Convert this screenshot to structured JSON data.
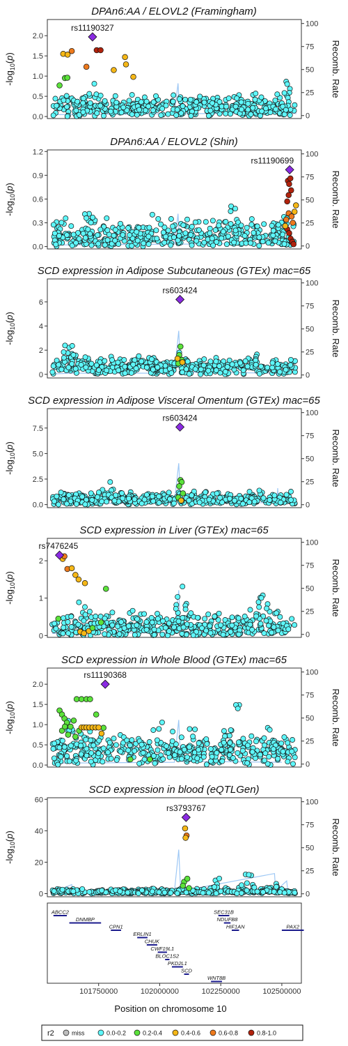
{
  "chart_data": {
    "type": "scatter",
    "colors": {
      "miss": "#BEBEBE",
      "0.0-0.2": "#5EF7FA",
      "0.2-0.4": "#5BE23B",
      "0.4-0.6": "#F5B717",
      "0.6-0.8": "#EE7A1D",
      "0.8-1.0": "#B1220C",
      "lead": "#8A2BE2",
      "recomb_line": "#9EC8F5"
    },
    "x_axis": {
      "label": "Position on chromosome 10",
      "ticks": [
        101750000,
        102000000,
        102250000,
        102500000
      ],
      "tick_labels": [
        "101750000",
        "102000000",
        "102250000",
        "102500000"
      ],
      "range": [
        101540000,
        102580000
      ]
    },
    "recomb_axis": {
      "label": "Recomb. Rate",
      "ticks": [
        0,
        25,
        50,
        75,
        100
      ],
      "range": [
        0,
        100
      ]
    },
    "panels": [
      {
        "title": "DPAn6:AA / ELOVL2 (Framingham)",
        "ylim": [
          -0.05,
          2.4
        ],
        "yticks": [
          0.0,
          0.5,
          1.0,
          1.5,
          2.0
        ],
        "ytick_labels": [
          "0.0",
          "0.5",
          "1.0",
          "1.5",
          "2.0"
        ],
        "lead": {
          "snp": "rs11190327",
          "x": 101725000,
          "y": 1.97
        },
        "colored": [
          {
            "x": 101605000,
            "y": 1.55,
            "c": "0.4-0.6"
          },
          {
            "x": 101623000,
            "y": 1.53,
            "c": "0.4-0.6"
          },
          {
            "x": 101640000,
            "y": 1.62,
            "c": "0.6-0.8"
          },
          {
            "x": 101700000,
            "y": 1.23,
            "c": "0.6-0.8"
          },
          {
            "x": 101742000,
            "y": 1.64,
            "c": "0.8-1.0"
          },
          {
            "x": 101758000,
            "y": 1.64,
            "c": "0.8-1.0"
          },
          {
            "x": 101812000,
            "y": 1.15,
            "c": "0.4-0.6"
          },
          {
            "x": 101858000,
            "y": 1.47,
            "c": "0.4-0.6"
          },
          {
            "x": 101862000,
            "y": 1.29,
            "c": "0.4-0.6"
          },
          {
            "x": 101892000,
            "y": 0.98,
            "c": "0.4-0.6"
          },
          {
            "x": 101590000,
            "y": 0.77,
            "c": "0.2-0.4"
          },
          {
            "x": 101612000,
            "y": 0.95,
            "c": "0.2-0.4"
          },
          {
            "x": 101622000,
            "y": 0.96,
            "c": "0.2-0.4"
          }
        ]
      },
      {
        "title": "DPAn6:AA / ELOVL2 (Shin)",
        "ylim": [
          -0.03,
          1.22
        ],
        "yticks": [
          0.0,
          0.3,
          0.6,
          0.9,
          1.2
        ],
        "ytick_labels": [
          "0.0",
          "0.3",
          "0.6",
          "0.9",
          "1.2"
        ],
        "lead": {
          "snp": "rs11190699",
          "x": 102532000,
          "y": 0.97
        },
        "colored": [
          {
            "x": 102525000,
            "y": 0.83,
            "c": "0.8-1.0"
          },
          {
            "x": 102530000,
            "y": 0.79,
            "c": "0.8-1.0"
          },
          {
            "x": 102535000,
            "y": 0.86,
            "c": "0.8-1.0"
          },
          {
            "x": 102528000,
            "y": 0.65,
            "c": "0.8-1.0"
          },
          {
            "x": 102538000,
            "y": 0.71,
            "c": "0.8-1.0"
          },
          {
            "x": 102522000,
            "y": 0.57,
            "c": "0.8-1.0"
          },
          {
            "x": 102518000,
            "y": 0.34,
            "c": "0.6-0.8"
          },
          {
            "x": 102528000,
            "y": 0.42,
            "c": "0.6-0.8"
          },
          {
            "x": 102540000,
            "y": 0.38,
            "c": "0.6-0.8"
          },
          {
            "x": 102545000,
            "y": 0.3,
            "c": "0.6-0.8"
          },
          {
            "x": 102522000,
            "y": 0.22,
            "c": "0.8-1.0"
          },
          {
            "x": 102530000,
            "y": 0.17,
            "c": "0.8-1.0"
          },
          {
            "x": 102536000,
            "y": 0.1,
            "c": "0.8-1.0"
          },
          {
            "x": 102543000,
            "y": 0.06,
            "c": "0.8-1.0"
          },
          {
            "x": 102548000,
            "y": 0.03,
            "c": "0.8-1.0"
          },
          {
            "x": 102558000,
            "y": 0.52,
            "c": "0.4-0.6"
          },
          {
            "x": 102552000,
            "y": 0.44,
            "c": "0.4-0.6"
          },
          {
            "x": 102514000,
            "y": 0.26,
            "c": "0.4-0.6"
          }
        ]
      },
      {
        "title": "SCD expression in Adipose Subcutaneous (GTEx) mac=65",
        "ylim": [
          -0.3,
          7.9
        ],
        "yticks": [
          0,
          2,
          4,
          6
        ],
        "ytick_labels": [
          "0",
          "2",
          "4",
          "6"
        ],
        "lead": {
          "snp": "rs603424",
          "x": 102083000,
          "y": 6.2
        },
        "colored": [
          {
            "x": 102085000,
            "y": 2.3,
            "c": "0.2-0.4"
          },
          {
            "x": 102080000,
            "y": 1.6,
            "c": "0.2-0.4"
          },
          {
            "x": 102090000,
            "y": 1.2,
            "c": "0.2-0.4"
          },
          {
            "x": 102076000,
            "y": 0.9,
            "c": "0.2-0.4"
          },
          {
            "x": 102073000,
            "y": 1.3,
            "c": "0.4-0.6"
          },
          {
            "x": 102093000,
            "y": 1.0,
            "c": "0.4-0.6"
          }
        ]
      },
      {
        "title": "SCD expression in Adipose Visceral Omentum (GTEx) mac=65",
        "ylim": [
          -0.3,
          9.4
        ],
        "yticks": [
          0.0,
          2.5,
          5.0,
          7.5
        ],
        "ytick_labels": [
          "0.0",
          "2.5",
          "5.0",
          "7.5"
        ],
        "lead": {
          "snp": "rs603424",
          "x": 102083000,
          "y": 7.6
        },
        "colored": [
          {
            "x": 102085000,
            "y": 2.4,
            "c": "0.2-0.4"
          },
          {
            "x": 102090000,
            "y": 2.2,
            "c": "0.2-0.4"
          },
          {
            "x": 102080000,
            "y": 1.8,
            "c": "0.2-0.4"
          },
          {
            "x": 102095000,
            "y": 1.1,
            "c": "0.2-0.4"
          },
          {
            "x": 102076000,
            "y": 0.7,
            "c": "0.2-0.4"
          },
          {
            "x": 102088000,
            "y": 0.4,
            "c": "0.4-0.6"
          }
        ]
      },
      {
        "title": "SCD expression in Liver (GTEx) mac=65",
        "ylim": [
          -0.05,
          2.6
        ],
        "yticks": [
          0,
          1,
          2
        ],
        "ytick_labels": [
          "0",
          "1",
          "2"
        ],
        "lead": {
          "snp": "rs7476245",
          "x": 101590000,
          "y": 2.15
        },
        "colored": [
          {
            "x": 101603000,
            "y": 2.05,
            "c": "0.4-0.6"
          },
          {
            "x": 101610000,
            "y": 2.12,
            "c": "0.6-0.8"
          },
          {
            "x": 101622000,
            "y": 1.78,
            "c": "0.6-0.8"
          },
          {
            "x": 101640000,
            "y": 1.8,
            "c": "0.4-0.6"
          },
          {
            "x": 101655000,
            "y": 1.62,
            "c": "0.4-0.6"
          },
          {
            "x": 101668000,
            "y": 1.5,
            "c": "0.4-0.6"
          },
          {
            "x": 101694000,
            "y": 1.4,
            "c": "0.4-0.6"
          },
          {
            "x": 101780000,
            "y": 1.25,
            "c": "0.2-0.4"
          },
          {
            "x": 101585000,
            "y": 0.45,
            "c": "0.2-0.4"
          },
          {
            "x": 101675000,
            "y": 0.1,
            "c": "0.4-0.6"
          },
          {
            "x": 101690000,
            "y": 0.06,
            "c": "0.4-0.6"
          },
          {
            "x": 101710000,
            "y": 0.12,
            "c": "0.4-0.6"
          },
          {
            "x": 101725000,
            "y": 0.2,
            "c": "0.2-0.4"
          },
          {
            "x": 101760000,
            "y": 0.35,
            "c": "0.2-0.4"
          }
        ]
      },
      {
        "title": "SCD expression in Whole Blood (GTEx) mac=65",
        "ylim": [
          -0.05,
          2.4
        ],
        "yticks": [
          0.0,
          0.5,
          1.0,
          1.5,
          2.0
        ],
        "ytick_labels": [
          "0.0",
          "0.5",
          "1.0",
          "1.5",
          "2.0"
        ],
        "lead": {
          "snp": "rs11190368",
          "x": 101777000,
          "y": 2.0
        },
        "colored": [
          {
            "x": 101660000,
            "y": 1.63,
            "c": "0.2-0.4"
          },
          {
            "x": 101680000,
            "y": 1.63,
            "c": "0.2-0.4"
          },
          {
            "x": 101700000,
            "y": 1.63,
            "c": "0.2-0.4"
          },
          {
            "x": 101715000,
            "y": 1.63,
            "c": "0.2-0.4"
          },
          {
            "x": 101590000,
            "y": 1.35,
            "c": "0.2-0.4"
          },
          {
            "x": 101600000,
            "y": 1.25,
            "c": "0.2-0.4"
          },
          {
            "x": 101610000,
            "y": 1.15,
            "c": "0.2-0.4"
          },
          {
            "x": 101620000,
            "y": 1.05,
            "c": "0.2-0.4"
          },
          {
            "x": 101635000,
            "y": 0.95,
            "c": "0.2-0.4"
          },
          {
            "x": 101648000,
            "y": 1.1,
            "c": "0.2-0.4"
          },
          {
            "x": 101600000,
            "y": 0.85,
            "c": "0.2-0.4"
          },
          {
            "x": 101625000,
            "y": 0.75,
            "c": "0.2-0.4"
          },
          {
            "x": 101612000,
            "y": 0.95,
            "c": "0.2-0.4"
          },
          {
            "x": 101655000,
            "y": 0.7,
            "c": "0.2-0.4"
          },
          {
            "x": 101670000,
            "y": 0.85,
            "c": "0.2-0.4"
          },
          {
            "x": 101740000,
            "y": 1.25,
            "c": "0.2-0.4"
          },
          {
            "x": 101770000,
            "y": 0.92,
            "c": "0.2-0.4"
          },
          {
            "x": 101680000,
            "y": 0.93,
            "c": "0.4-0.6"
          },
          {
            "x": 101690000,
            "y": 0.93,
            "c": "0.4-0.6"
          },
          {
            "x": 101700000,
            "y": 0.93,
            "c": "0.4-0.6"
          },
          {
            "x": 101712000,
            "y": 0.93,
            "c": "0.4-0.6"
          },
          {
            "x": 101725000,
            "y": 0.93,
            "c": "0.4-0.6"
          },
          {
            "x": 101738000,
            "y": 0.93,
            "c": "0.4-0.6"
          },
          {
            "x": 101750000,
            "y": 0.93,
            "c": "0.4-0.6"
          },
          {
            "x": 101762000,
            "y": 0.78,
            "c": "0.4-0.6"
          },
          {
            "x": 101880000,
            "y": 0.14,
            "c": "0.2-0.4"
          },
          {
            "x": 101960000,
            "y": 0.14,
            "c": "0.2-0.4"
          }
        ]
      },
      {
        "title": "SCD expression in blood (eQTLGen)",
        "ylim": [
          -2,
          61
        ],
        "yticks": [
          0,
          20,
          40,
          60
        ],
        "ytick_labels": [
          "0",
          "20",
          "40",
          "60"
        ],
        "lead": {
          "snp": "rs3793767",
          "x": 102108000,
          "y": 48.5
        },
        "colored": [
          {
            "x": 102104000,
            "y": 41.5,
            "c": "0.4-0.6"
          },
          {
            "x": 102110000,
            "y": 37.0,
            "c": "0.6-0.8"
          },
          {
            "x": 102106000,
            "y": 35.5,
            "c": "0.4-0.6"
          },
          {
            "x": 102100000,
            "y": 7.5,
            "c": "0.2-0.4"
          },
          {
            "x": 102113000,
            "y": 9.5,
            "c": "0.2-0.4"
          },
          {
            "x": 102095000,
            "y": 5.0,
            "c": "0.2-0.4"
          },
          {
            "x": 102120000,
            "y": 3.5,
            "c": "0.2-0.4"
          }
        ]
      }
    ],
    "genes": [
      {
        "name": "ABCC2",
        "start": 101565000,
        "end": 101620000
      },
      {
        "name": "DNMBP",
        "start": 101630000,
        "end": 101760000
      },
      {
        "name": "CPN1",
        "start": 101800000,
        "end": 101842000
      },
      {
        "name": "ERLIN1",
        "start": 101908000,
        "end": 101950000
      },
      {
        "name": "CHUK",
        "start": 101947000,
        "end": 101990000
      },
      {
        "name": "CWF19L1",
        "start": 101992000,
        "end": 102030000
      },
      {
        "name": "BLOC1S2",
        "start": 102022000,
        "end": 102040000
      },
      {
        "name": "PKD2L1",
        "start": 102050000,
        "end": 102095000
      },
      {
        "name": "SCD",
        "start": 102100000,
        "end": 102120000
      },
      {
        "name": "SEC31B",
        "start": 102240000,
        "end": 102285000
      },
      {
        "name": "NDUFB8",
        "start": 102263000,
        "end": 102290000
      },
      {
        "name": "HIF1AN",
        "start": 102295000,
        "end": 102325000
      },
      {
        "name": "WNT8B",
        "start": 102210000,
        "end": 102255000
      },
      {
        "name": "PAX2",
        "start": 102500000,
        "end": 102590000
      }
    ],
    "legend": {
      "title": "r2",
      "placement": "bottom",
      "items": [
        "miss",
        "0.0-0.2",
        "0.2-0.4",
        "0.4-0.6",
        "0.6-0.8",
        "0.8-1.0"
      ]
    }
  }
}
